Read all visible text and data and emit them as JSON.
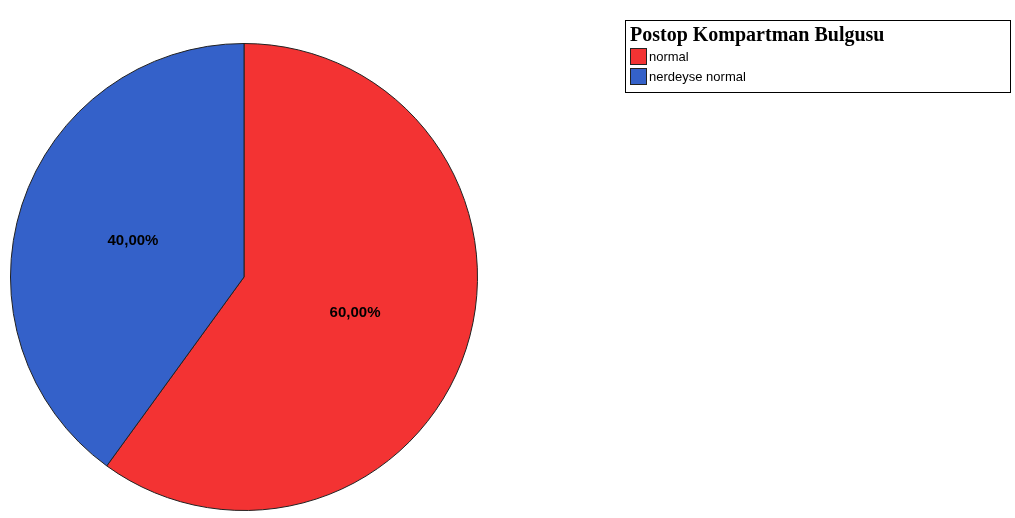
{
  "chart_data": {
    "type": "pie",
    "legend_title": "Postop Kompartman Bulgusu",
    "legend": "top right",
    "categories": [
      "normal",
      "nerdeyse normal"
    ],
    "values": [
      60,
      40
    ],
    "colors": [
      "#f33333",
      "#3461c9"
    ],
    "value_labels": [
      "60,00%",
      "40,00%"
    ]
  }
}
